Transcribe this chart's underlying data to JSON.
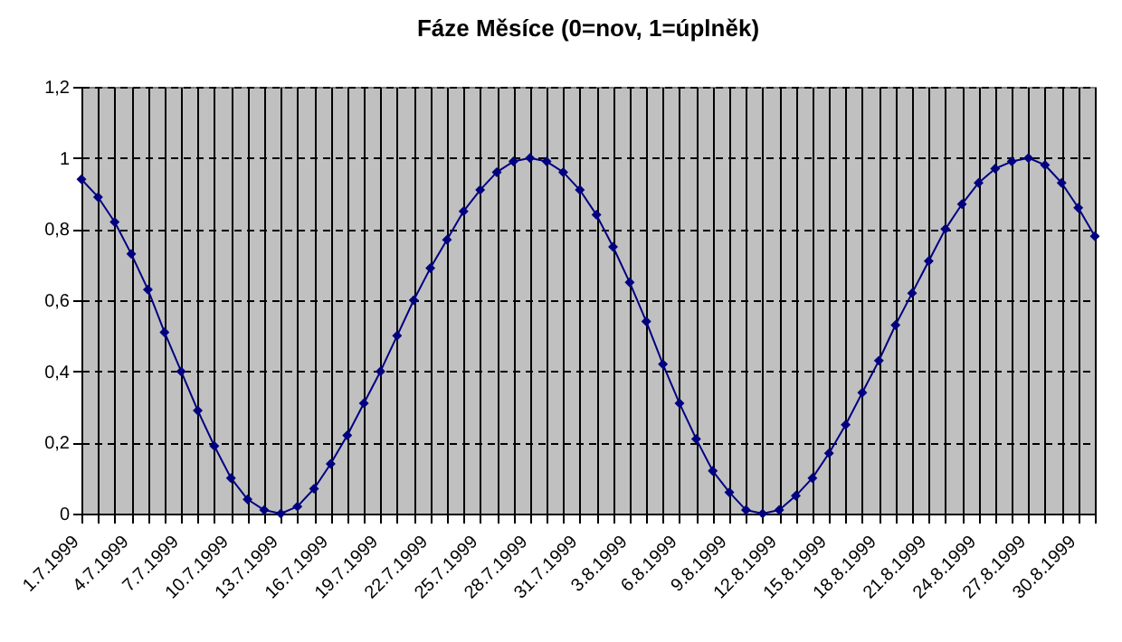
{
  "chart_data": {
    "type": "line",
    "title": "Fáze Měsíce (0=nov, 1=úplněk)",
    "categories": [
      "1.7.1999",
      null,
      null,
      "4.7.1999",
      null,
      null,
      "7.7.1999",
      null,
      null,
      "10.7.1999",
      null,
      null,
      "13.7.1999",
      null,
      null,
      "16.7.1999",
      null,
      null,
      "19.7.1999",
      null,
      null,
      "22.7.1999",
      null,
      null,
      "25.7.1999",
      null,
      null,
      "28.7.1999",
      null,
      null,
      "31.7.1999",
      null,
      null,
      "3.8.1999",
      null,
      null,
      "6.8.1999",
      null,
      null,
      "9.8.1999",
      null,
      null,
      "12.8.1999",
      null,
      null,
      "15.8.1999",
      null,
      null,
      "18.8.1999",
      null,
      null,
      "21.8.1999",
      null,
      null,
      "24.8.1999",
      null,
      null,
      "27.8.1999",
      null,
      null,
      "30.8.1999",
      null
    ],
    "series": [
      {
        "color": "#000080",
        "values": [
          0.94,
          0.89,
          0.82,
          0.73,
          0.63,
          0.51,
          0.4,
          0.29,
          0.19,
          0.1,
          0.04,
          0.01,
          0.0,
          0.02,
          0.07,
          0.14,
          0.22,
          0.31,
          0.4,
          0.5,
          0.6,
          0.69,
          0.77,
          0.85,
          0.91,
          0.96,
          0.99,
          1.0,
          0.99,
          0.96,
          0.91,
          0.84,
          0.75,
          0.65,
          0.54,
          0.42,
          0.31,
          0.21,
          0.12,
          0.06,
          0.01,
          0.0,
          0.01,
          0.05,
          0.1,
          0.17,
          0.25,
          0.34,
          0.43,
          0.53,
          0.62,
          0.71,
          0.8,
          0.87,
          0.93,
          0.97,
          0.99,
          1.0,
          0.98,
          0.93,
          0.86,
          0.78
        ]
      }
    ],
    "ylim": [
      0,
      1.2
    ],
    "yticks": [
      0,
      {
        "value": 0.2,
        "label": "0,2"
      },
      {
        "value": 0.4,
        "label": "0,4"
      },
      {
        "value": 0.6,
        "label": "0,6"
      },
      {
        "value": 0.8,
        "label": "0,8"
      },
      1,
      {
        "value": 1.2,
        "label": "1,2"
      }
    ],
    "grid": true,
    "marker": "diamond",
    "line_style": "solid"
  }
}
